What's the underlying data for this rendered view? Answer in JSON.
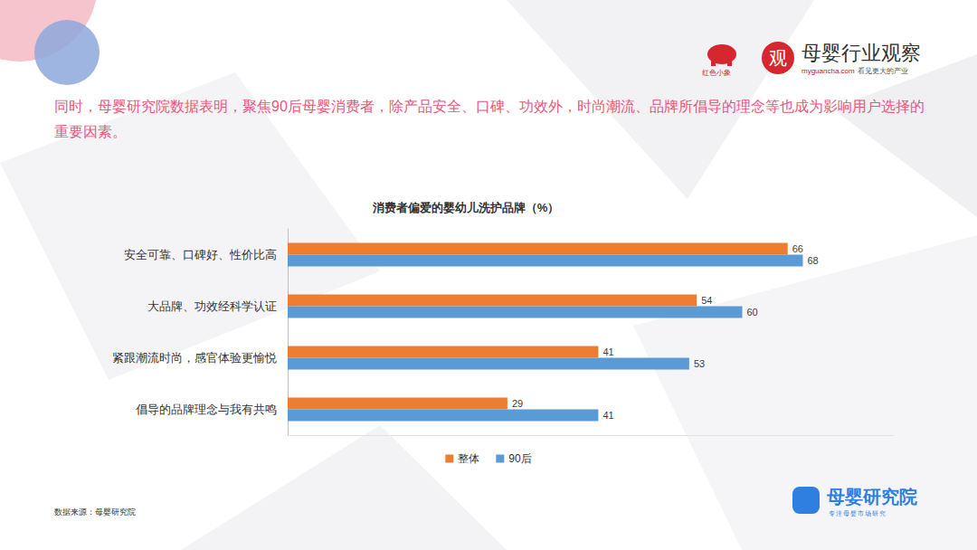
{
  "page": {
    "headline": "同时，母婴研究院数据表明，聚焦90后母婴消费者，除产品安全、口碑、功效外，时尚潮流、品牌所倡导的理念等也成为影响用户选择的重要因素。",
    "source": "数据来源：母婴研究院",
    "partner": "红色小象",
    "brand": {
      "logo_char": "观",
      "name": "母婴行业观察",
      "url": "myguancha.com",
      "slogan": "看见更大的产业"
    },
    "institute": {
      "name": "母婴研究院",
      "slogan": "专注母婴市场研究"
    }
  },
  "chart_data": {
    "type": "bar",
    "orientation": "horizontal",
    "title": "消费者偏爱的婴幼儿洗护品牌（%）",
    "categories": [
      "安全可靠、口碑好、性价比高",
      "大品牌、功效经科学认证",
      "紧跟潮流时尚，感官体验更愉悦",
      "倡导的品牌理念与我有共鸣"
    ],
    "series": [
      {
        "name": "整体",
        "color": "#ED7D31",
        "values": [
          66,
          54,
          41,
          29
        ]
      },
      {
        "name": "90后",
        "color": "#5B9BD5",
        "values": [
          68,
          60,
          53,
          41
        ]
      }
    ],
    "xlim": [
      0,
      80
    ],
    "grid": false,
    "legend": "bottom",
    "data_labels": true,
    "tick_labels": "y"
  }
}
